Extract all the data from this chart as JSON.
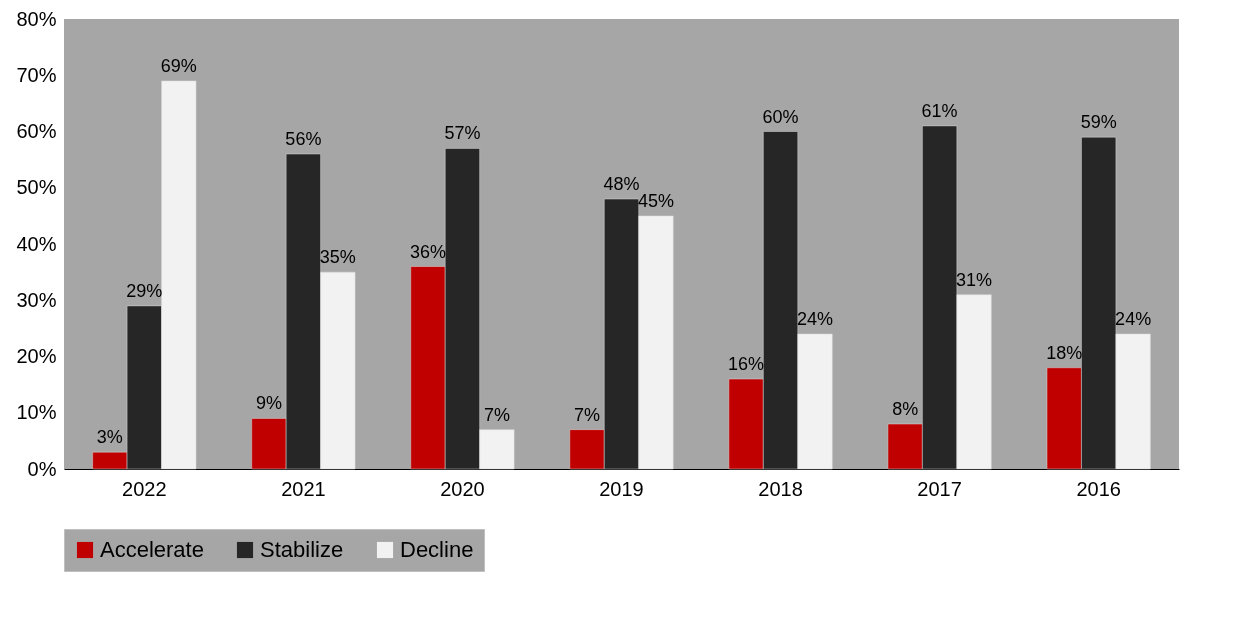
{
  "chart_data": {
    "type": "bar",
    "categories": [
      "2022",
      "2021",
      "2020",
      "2019",
      "2018",
      "2017",
      "2016"
    ],
    "series": [
      {
        "name": "Accelerate",
        "color": "#c00000",
        "values": [
          3,
          9,
          36,
          7,
          16,
          8,
          18
        ],
        "value_labels": [
          "3%",
          "9%",
          "36%",
          "7%",
          "16%",
          "8%",
          "18%"
        ]
      },
      {
        "name": "Stabilize",
        "color": "#262626",
        "values": [
          29,
          56,
          57,
          48,
          60,
          61,
          59
        ],
        "value_labels": [
          "29%",
          "56%",
          "57%",
          "48%",
          "60%",
          "61%",
          "59%"
        ]
      },
      {
        "name": "Decline",
        "color": "#f2f2f2",
        "values": [
          69,
          35,
          7,
          45,
          24,
          31,
          24
        ],
        "value_labels": [
          "69%",
          "35%",
          "7%",
          "45%",
          "24%",
          "31%",
          "24%"
        ]
      }
    ],
    "ylim": [
      0,
      80
    ],
    "yticks": [
      {
        "value": 0,
        "label": "0%"
      },
      {
        "value": 10,
        "label": "10%"
      },
      {
        "value": 20,
        "label": "20%"
      },
      {
        "value": 30,
        "label": "30%"
      },
      {
        "value": 40,
        "label": "40%"
      },
      {
        "value": 50,
        "label": "50%"
      },
      {
        "value": 60,
        "label": "60%"
      },
      {
        "value": 70,
        "label": "70%"
      },
      {
        "value": 80,
        "label": "80%"
      }
    ],
    "grid": false,
    "legend": "bottom"
  }
}
